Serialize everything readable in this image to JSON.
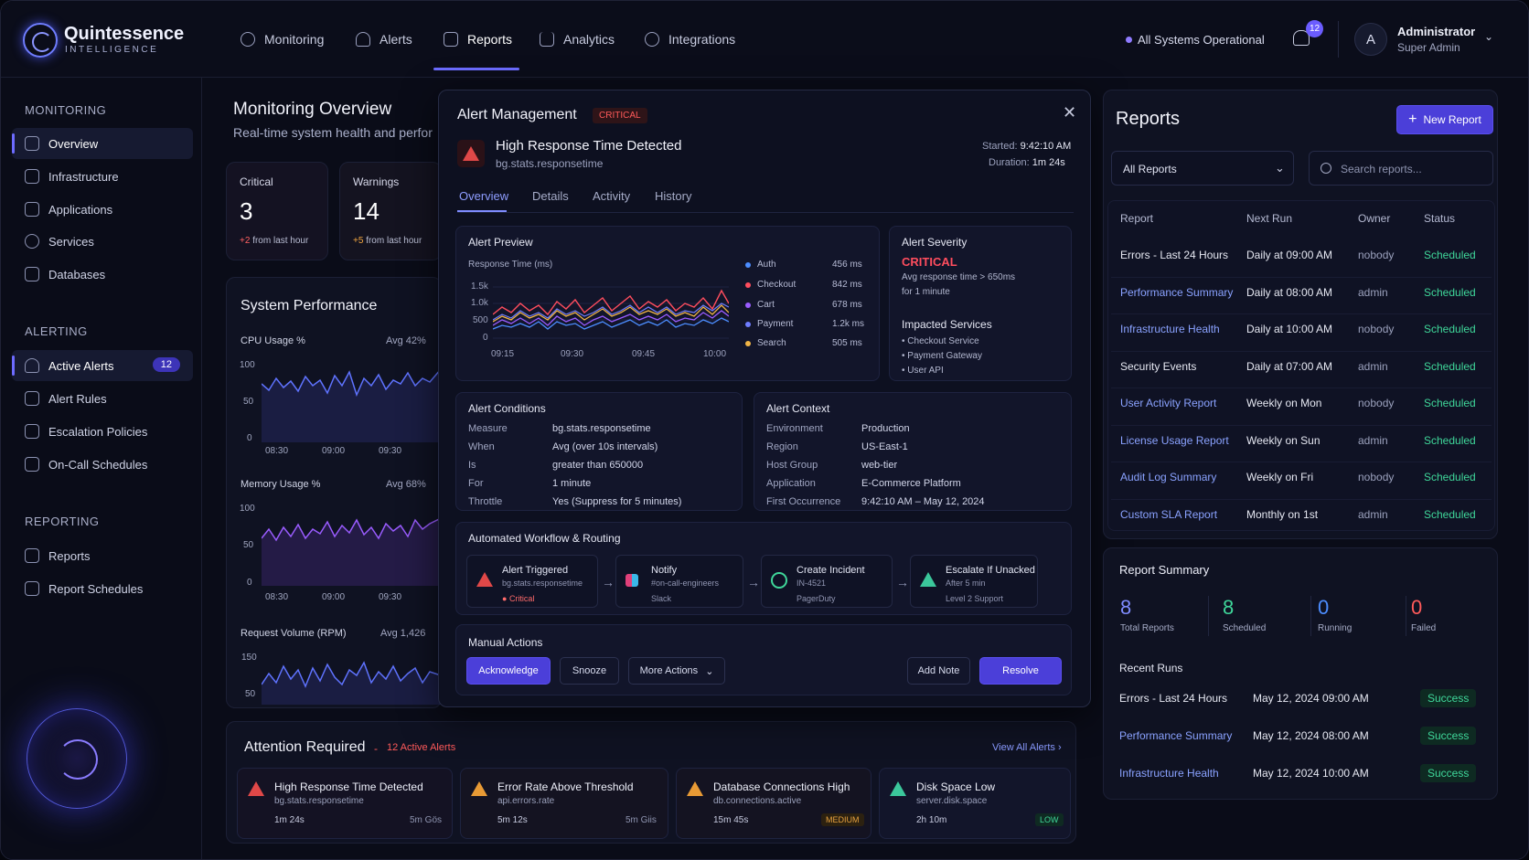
{
  "brand": {
    "name": "Quintessence",
    "sub": "INTELLIGENCE"
  },
  "nav": [
    "Monitoring",
    "Alerts",
    "Reports",
    "Analytics",
    "Integrations"
  ],
  "status": "All Systems Operational",
  "notif_count": "12",
  "user": {
    "initial": "A",
    "name": "Administrator",
    "role": "Super Admin"
  },
  "sidebar": {
    "monitoring_title": "MONITORING",
    "monitoring": [
      "Overview",
      "Infrastructure",
      "Applications",
      "Services",
      "Databases"
    ],
    "alerting_title": "ALERTING",
    "alerting": [
      "Active Alerts",
      "Alert Rules",
      "Escalation Policies",
      "On-Call Schedules"
    ],
    "alerts_badge": "12",
    "reporting_title": "REPORTING",
    "reporting": [
      "Reports",
      "Report Schedules"
    ]
  },
  "overview": {
    "title": "Monitoring Overview",
    "subtitle": "Real-time system health and perfor",
    "critical": {
      "label": "Critical",
      "value": "3",
      "delta": "+2",
      "delta_text": "from last hour"
    },
    "warnings": {
      "label": "Warnings",
      "value": "14",
      "delta": "+5",
      "delta_text": "from last hour"
    }
  },
  "perf": {
    "title": "System Performance",
    "cpu": {
      "label": "CPU Usage %",
      "avg": "Avg 42%",
      "y": [
        "100",
        "50",
        "0"
      ],
      "x": [
        "08:30",
        "09:00",
        "09:30"
      ]
    },
    "mem": {
      "label": "Memory Usage %",
      "avg": "Avg 68%",
      "y": [
        "100",
        "50",
        "0"
      ],
      "x": [
        "08:30",
        "09:00",
        "09:30"
      ]
    },
    "req": {
      "label": "Request Volume (RPM)",
      "avg": "Avg 1,426",
      "y": [
        "150",
        "50"
      ]
    }
  },
  "modal": {
    "title": "Alert Management",
    "badge": "CRITICAL",
    "alert_title": "High Response Time Detected",
    "metric": "bg.stats.responsetime",
    "started_label": "Started:",
    "started": "9:42:10 AM",
    "duration_label": "Duration:",
    "duration": "1m 24s",
    "tabs": [
      "Overview",
      "Details",
      "Activity",
      "History"
    ],
    "preview": {
      "title": "Alert Preview",
      "ylabel": "Response Time (ms)",
      "y": [
        "1.5k",
        "1.0k",
        "500",
        "0"
      ],
      "x": [
        "09:15",
        "09:30",
        "09:45",
        "10:00"
      ],
      "legend": [
        {
          "name": "Auth",
          "val": "456 ms",
          "color": "#4c8dff"
        },
        {
          "name": "Checkout",
          "val": "842 ms",
          "color": "#ff4d5e"
        },
        {
          "name": "Cart",
          "val": "678 ms",
          "color": "#9a5cff"
        },
        {
          "name": "Payment",
          "val": "1.2k ms",
          "color": "#6f7dff"
        },
        {
          "name": "Search",
          "val": "505 ms",
          "color": "#f0b446"
        }
      ]
    },
    "severity": {
      "title": "Alert Severity",
      "level": "CRITICAL",
      "desc1": "Avg response time > 650ms",
      "desc2": "for 1 minute",
      "impacted_title": "Impacted Services",
      "impacted": [
        "Checkout Service",
        "Payment Gateway",
        "User API"
      ]
    },
    "conditions": {
      "title": "Alert Conditions",
      "rows": [
        [
          "Measure",
          "bg.stats.responsetime"
        ],
        [
          "When",
          "Avg (over 10s intervals)"
        ],
        [
          "Is",
          "greater than 650000"
        ],
        [
          "For",
          "1 minute"
        ],
        [
          "Throttle",
          "Yes (Suppress for 5 minutes)"
        ]
      ]
    },
    "context": {
      "title": "Alert Context",
      "rows": [
        [
          "Environment",
          "Production"
        ],
        [
          "Region",
          "US-East-1"
        ],
        [
          "Host Group",
          "web-tier"
        ],
        [
          "Application",
          "E-Commerce Platform"
        ],
        [
          "First Occurrence",
          "9:42:10 AM – May 12, 2024"
        ]
      ]
    },
    "workflow": {
      "title": "Automated Workflow & Routing",
      "steps": [
        {
          "t": "Alert Triggered",
          "s1": "bg.stats.responsetime",
          "s2": "Critical"
        },
        {
          "t": "Notify",
          "s1": "#on-call-engineers",
          "s2": "Slack"
        },
        {
          "t": "Create Incident",
          "s1": "IN-4521",
          "s2": "PagerDuty"
        },
        {
          "t": "Escalate If Unacked",
          "s1": "After 5 min",
          "s2": "Level 2 Support"
        }
      ]
    },
    "actions": {
      "title": "Manual Actions",
      "ack": "Acknowledge",
      "snooze": "Snooze",
      "more": "More Actions",
      "note": "Add Note",
      "resolve": "Resolve"
    }
  },
  "attention": {
    "title": "Attention Required",
    "sep": "-",
    "count": "12 Active Alerts",
    "view_all": "View All Alerts",
    "items": [
      {
        "t": "High Response Time Detected",
        "m": "bg.stats.responsetime",
        "d": "1m 24s",
        "r": "5m Gös",
        "tag": ""
      },
      {
        "t": "Error Rate Above Threshold",
        "m": "api.errors.rate",
        "d": "5m 12s",
        "r": "5m Giis",
        "tag": ""
      },
      {
        "t": "Database Connections High",
        "m": "db.connections.active",
        "d": "15m 45s",
        "r": "",
        "tag": "MEDIUM"
      },
      {
        "t": "Disk Space Low",
        "m": "server.disk.space",
        "d": "2h 10m",
        "r": "",
        "tag": "LOW"
      }
    ]
  },
  "reports": {
    "title": "Reports",
    "new": "New Report",
    "filter": "All Reports",
    "search_ph": "Search reports...",
    "cols": [
      "Report",
      "Next Run",
      "Owner",
      "Status"
    ],
    "rows": [
      [
        "Errors - Last 24 Hours",
        "Daily at 09:00 AM",
        "nobody",
        "Scheduled",
        false
      ],
      [
        "Performance Summary",
        "Daily at 08:00 AM",
        "admin",
        "Scheduled",
        true
      ],
      [
        "Infrastructure Health",
        "Daily at 10:00 AM",
        "nobody",
        "Scheduled",
        true
      ],
      [
        "Security Events",
        "Daily at 07:00 AM",
        "admin",
        "Scheduled",
        false
      ],
      [
        "User Activity Report",
        "Weekly on Mon",
        "nobody",
        "Scheduled",
        true
      ],
      [
        "License Usage Report",
        "Weekly on Sun",
        "admin",
        "Scheduled",
        true
      ],
      [
        "Audit Log Summary",
        "Weekly on Fri",
        "nobody",
        "Scheduled",
        true
      ],
      [
        "Custom SLA Report",
        "Monthly on 1st",
        "admin",
        "Scheduled",
        true
      ]
    ]
  },
  "summary": {
    "title": "Report Summary",
    "stats": [
      {
        "v": "8",
        "l": "Total Reports",
        "c": "#7f8cff"
      },
      {
        "v": "8",
        "l": "Scheduled",
        "c": "#3fd79a"
      },
      {
        "v": "0",
        "l": "Running",
        "c": "#4c8dff"
      },
      {
        "v": "0",
        "l": "Failed",
        "c": "#ff5a5a"
      }
    ],
    "recent_title": "Recent Runs",
    "runs": [
      [
        "Errors - Last 24 Hours",
        "May 12, 2024 09:00 AM",
        "Success",
        false
      ],
      [
        "Performance Summary",
        "May 12, 2024 08:00 AM",
        "Success",
        true
      ],
      [
        "Infrastructure Health",
        "May 12, 2024 10:00 AM",
        "Success",
        true
      ]
    ]
  }
}
